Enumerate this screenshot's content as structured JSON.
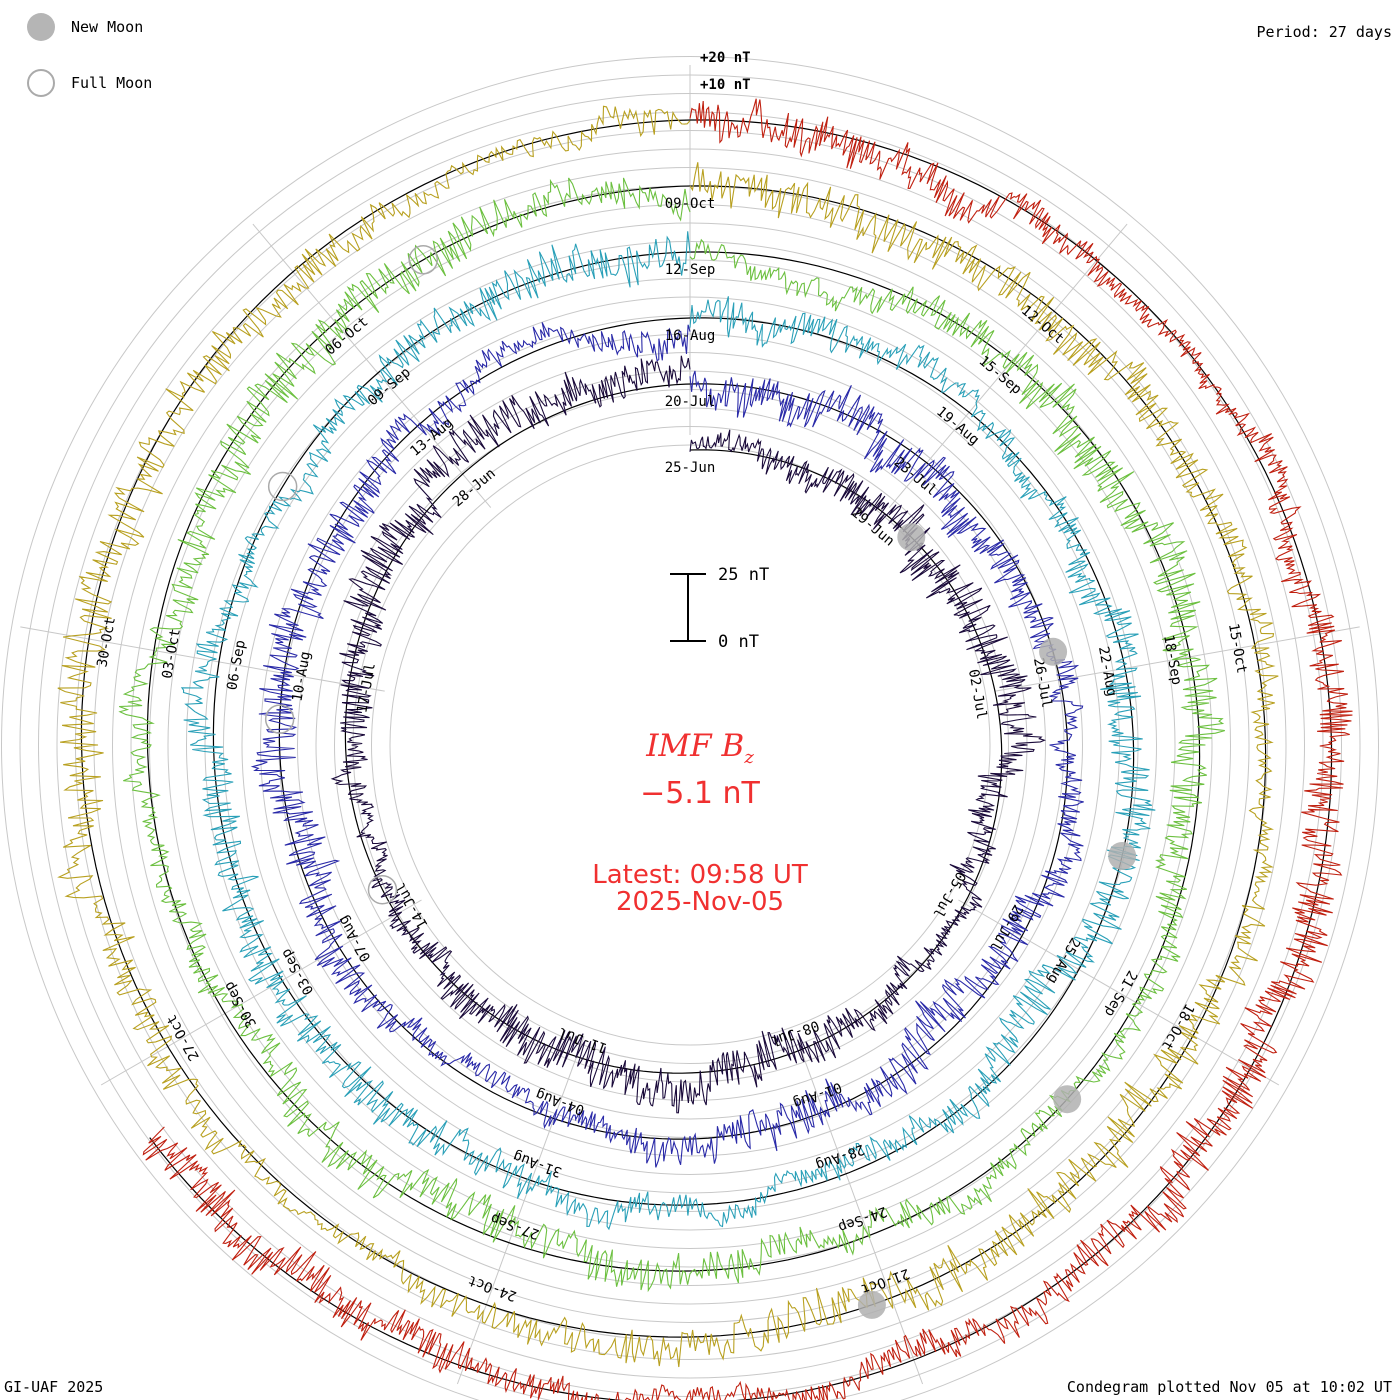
{
  "legend": {
    "new_moon_label": "New Moon",
    "full_moon_label": "Full Moon"
  },
  "header": {
    "period": "Period: 27 days"
  },
  "footer": {
    "credit": "GI-UAF 2025",
    "plotted": "Condegram plotted Nov 05 at 10:02 UT"
  },
  "scale": {
    "top_label": "25 nT",
    "bottom_label": "0 nT",
    "outer_labels": [
      "+20 nT",
      "+10 nT"
    ]
  },
  "center": {
    "quantity": "IMF B",
    "subscript": "z",
    "value": "−5.1 nT",
    "latest_time": "Latest: 09:58 UT",
    "latest_date": "2025-Nov-05"
  },
  "colors": {
    "text_red": "#f03030",
    "grid": "#c8c8c8",
    "zero_ring": "#000000",
    "moon_gray": "#b0b0b0"
  },
  "chart_data": {
    "type": "line",
    "title": "IMF Bz condegram",
    "period_days": 27,
    "units": "nT",
    "latest_value": -5.1,
    "rotations": [
      {
        "index": 0,
        "color": "#1a0a3a",
        "date_labels": [
          "25-Jun",
          "29-Jun",
          "02-Jul",
          "05-Jul",
          "08-Jul",
          "11-Jul",
          "14-Jul",
          "17-Jul",
          "28-Jun"
        ]
      },
      {
        "index": 1,
        "color": "#2a2aa8",
        "date_labels": [
          "20-Jul",
          "23-Jul",
          "26-Jul",
          "29-Jul",
          "01-Aug",
          "04-Aug",
          "07-Aug",
          "10-Aug",
          "13-Aug"
        ]
      },
      {
        "index": 2,
        "color": "#2aa0b8",
        "date_labels": [
          "16-Aug",
          "19-Aug",
          "22-Aug",
          "25-Aug",
          "28-Aug",
          "31-Aug",
          "03-Sep",
          "06-Sep",
          "09-Sep"
        ]
      },
      {
        "index": 3,
        "color": "#6cc040",
        "date_labels": [
          "12-Sep",
          "15-Sep",
          "18-Sep",
          "21-Sep",
          "24-Sep",
          "27-Sep",
          "30-Sep",
          "03-Oct",
          "06-Oct"
        ]
      },
      {
        "index": 4,
        "color": "#b8a020",
        "date_labels": [
          "09-Oct",
          "12-Oct",
          "15-Oct",
          "18-Oct",
          "21-Oct",
          "24-Oct",
          "27-Oct",
          "30-Oct"
        ]
      },
      {
        "index": 5,
        "color": "#c02010",
        "date_labels": []
      }
    ],
    "new_moon_markers": [
      "25-Jun",
      "24-Jul",
      "23-Aug",
      "21-Sep",
      "21-Oct"
    ],
    "full_moon_markers": [
      "10-Jul",
      "09-Aug",
      "07-Sep",
      "07-Oct"
    ]
  }
}
